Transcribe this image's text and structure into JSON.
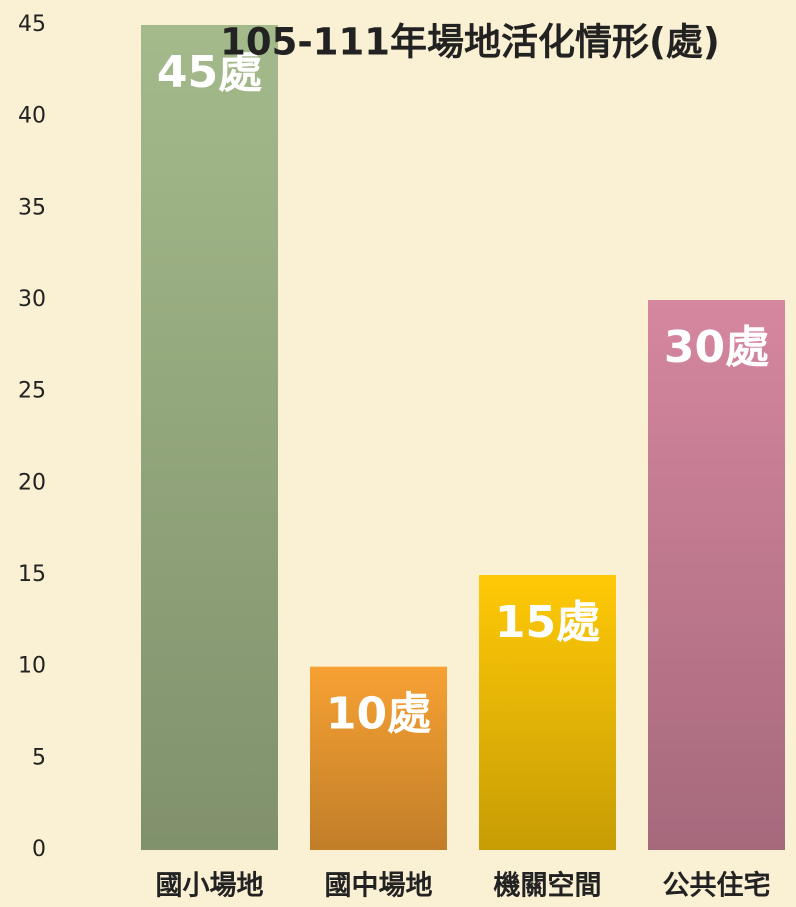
{
  "chart_data": {
    "type": "bar",
    "title": "105-111年場地活化情形(處)",
    "categories": [
      "國小場地",
      "國中場地",
      "機關空間",
      "公共住宅"
    ],
    "values": [
      45,
      10,
      15,
      30
    ],
    "value_labels": [
      "45處",
      "10處",
      "15處",
      "30處"
    ],
    "colors": [
      "#a4ba8b",
      "#f7a133",
      "#ffc906",
      "#d5879f"
    ],
    "ylim": [
      0,
      45
    ],
    "yticks": [
      0,
      5,
      10,
      15,
      20,
      25,
      30,
      35,
      40,
      45
    ],
    "grid": false
  }
}
